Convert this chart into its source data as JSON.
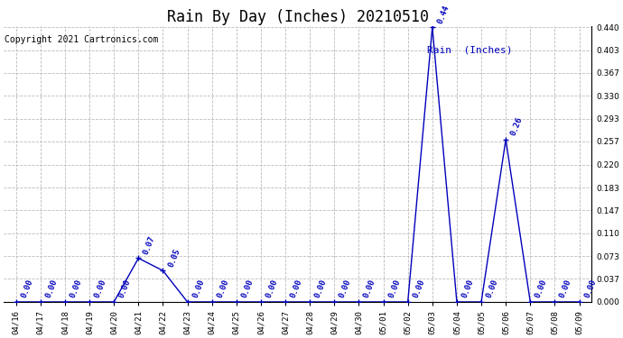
{
  "title": "Rain By Day (Inches) 20210510",
  "copyright_text": "Copyright 2021 Cartronics.com",
  "legend_label": "Rain  (Inches)",
  "x_labels": [
    "04/16",
    "04/17",
    "04/18",
    "04/19",
    "04/20",
    "04/21",
    "04/22",
    "04/23",
    "04/24",
    "04/25",
    "04/26",
    "04/27",
    "04/28",
    "04/29",
    "04/30",
    "05/01",
    "05/02",
    "05/03",
    "05/04",
    "05/05",
    "05/06",
    "05/07",
    "05/08",
    "05/09"
  ],
  "y_values": [
    0.0,
    0.0,
    0.0,
    0.0,
    0.0,
    0.07,
    0.05,
    0.0,
    0.0,
    0.0,
    0.0,
    0.0,
    0.0,
    0.0,
    0.0,
    0.0,
    0.0,
    0.44,
    0.0,
    0.0,
    0.26,
    0.0,
    0.0,
    0.0
  ],
  "line_color": "#0000BB",
  "annotation_color": "#0000BB",
  "grid_color": "#BBBBBB",
  "bg_color": "#FFFFFF",
  "ylim": [
    0.0,
    0.44
  ],
  "yticks": [
    0.0,
    0.037,
    0.073,
    0.11,
    0.147,
    0.183,
    0.22,
    0.257,
    0.293,
    0.33,
    0.367,
    0.403,
    0.44
  ],
  "title_fontsize": 12,
  "label_fontsize": 6.5,
  "annot_fontsize": 6.5,
  "copyright_fontsize": 7
}
